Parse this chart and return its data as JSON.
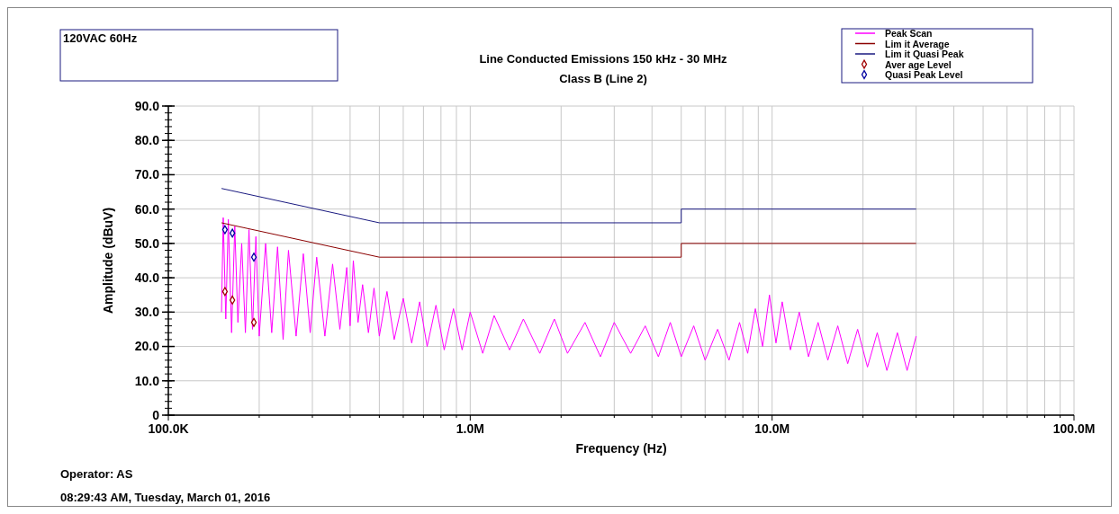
{
  "chart_data": {
    "type": "line",
    "title": "Line Conducted Emissions 150 kHz - 30 MHz",
    "subtitle": "Class B (Line 2)",
    "xlabel": "Frequency (Hz)",
    "ylabel": "Amplitude (dBuV)",
    "annotations": [
      "120VAC 60Hz",
      "Operator: AS",
      "08:29:43 AM, Tuesday, March 01, 2016"
    ],
    "log": "x",
    "xlim": [
      100000,
      100000000
    ],
    "ylim": [
      0,
      90
    ],
    "xticks": [
      {
        "value": 100000,
        "label": "100.0K"
      },
      {
        "value": 200000,
        "label": null
      },
      {
        "value": 300000,
        "label": null
      },
      {
        "value": 400000,
        "label": null
      },
      {
        "value": 500000,
        "label": null
      },
      {
        "value": 600000,
        "label": null
      },
      {
        "value": 700000,
        "label": null
      },
      {
        "value": 800000,
        "label": null
      },
      {
        "value": 900000,
        "label": null
      },
      {
        "value": 1000000,
        "label": "1.0M"
      },
      {
        "value": 2000000,
        "label": null
      },
      {
        "value": 3000000,
        "label": null
      },
      {
        "value": 4000000,
        "label": null
      },
      {
        "value": 5000000,
        "label": null
      },
      {
        "value": 6000000,
        "label": null
      },
      {
        "value": 7000000,
        "label": null
      },
      {
        "value": 8000000,
        "label": null
      },
      {
        "value": 9000000,
        "label": null
      },
      {
        "value": 10000000,
        "label": "10.0M"
      },
      {
        "value": 20000000,
        "label": null
      },
      {
        "value": 30000000,
        "label": null
      },
      {
        "value": 40000000,
        "label": null
      },
      {
        "value": 50000000,
        "label": null
      },
      {
        "value": 60000000,
        "label": null
      },
      {
        "value": 70000000,
        "label": null
      },
      {
        "value": 80000000,
        "label": null
      },
      {
        "value": 90000000,
        "label": null
      },
      {
        "value": 100000000,
        "label": "100.0M"
      }
    ],
    "yticks": [
      0,
      {
        "value": 10,
        "label": "10.0"
      },
      {
        "value": 20,
        "label": "20.0"
      },
      {
        "value": 30,
        "label": "30.0"
      },
      {
        "value": 40,
        "label": "40.0"
      },
      {
        "value": 50,
        "label": "50.0"
      },
      {
        "value": 60,
        "label": "60.0"
      },
      {
        "value": 70,
        "label": "70.0"
      },
      {
        "value": 80,
        "label": "80.0"
      },
      {
        "value": 90,
        "label": "90.0"
      }
    ],
    "grid": true,
    "legend": "top right",
    "series": [
      {
        "name": "Peak Scan",
        "color": "#ff00ff",
        "x": [
          150000,
          152000,
          155000,
          158000,
          162000,
          166000,
          170000,
          175000,
          180000,
          185000,
          190000,
          195000,
          200000,
          210000,
          220000,
          230000,
          240000,
          250000,
          265000,
          280000,
          295000,
          310000,
          330000,
          350000,
          370000,
          390000,
          400000,
          410000,
          425000,
          440000,
          460000,
          480000,
          500000,
          530000,
          560000,
          600000,
          640000,
          680000,
          720000,
          770000,
          820000,
          880000,
          940000,
          1000000,
          1100000,
          1200000,
          1350000,
          1500000,
          1700000,
          1900000,
          2100000,
          2400000,
          2700000,
          3000000,
          3400000,
          3800000,
          4200000,
          4600000,
          5000000,
          5500000,
          6000000,
          6600000,
          7200000,
          7800000,
          8300000,
          8800000,
          9300000,
          9800000,
          10300000,
          10800000,
          11500000,
          12300000,
          13200000,
          14200000,
          15300000,
          16500000,
          17800000,
          19200000,
          20700000,
          22300000,
          24000000,
          26000000,
          28000000,
          30000000
        ],
        "values": [
          30,
          57.5,
          28,
          57,
          24,
          55,
          27,
          50,
          24,
          54,
          25,
          52,
          23,
          50,
          24,
          49,
          22,
          48,
          23,
          47,
          24,
          46,
          23,
          44,
          25,
          43,
          26,
          45,
          27,
          38,
          24,
          37,
          23,
          36,
          22,
          34,
          21,
          33,
          20,
          32,
          19,
          31,
          19,
          30,
          18,
          29,
          19,
          28,
          18,
          28,
          18,
          27,
          17,
          27,
          18,
          26,
          17,
          27,
          17,
          26,
          16,
          25,
          16,
          27,
          18,
          31,
          20,
          35,
          21,
          33,
          19,
          30,
          17,
          27,
          16,
          26,
          15,
          25,
          14,
          24,
          13,
          24,
          13,
          23
        ]
      },
      {
        "name": "Lim it Average",
        "color": "#8b0000",
        "x": [
          150000,
          500000,
          5000000,
          5000000,
          30000000
        ],
        "values": [
          56,
          46,
          46,
          50,
          50
        ]
      },
      {
        "name": "Lim it Quasi Peak",
        "color": "#1a1a80",
        "x": [
          150000,
          500000,
          5000000,
          5000000,
          30000000
        ],
        "values": [
          66,
          56,
          56,
          60,
          60
        ]
      },
      {
        "name": "Aver age Level",
        "type": "scatter",
        "marker": "diamond",
        "color": "#a00000",
        "x": [
          154000,
          163000,
          192000
        ],
        "values": [
          36,
          33.5,
          27
        ]
      },
      {
        "name": "Quasi Peak Level",
        "type": "scatter",
        "marker": "diamond",
        "color": "#0000a0",
        "x": [
          154000,
          163000,
          192000
        ],
        "values": [
          54,
          53,
          46
        ]
      }
    ]
  }
}
